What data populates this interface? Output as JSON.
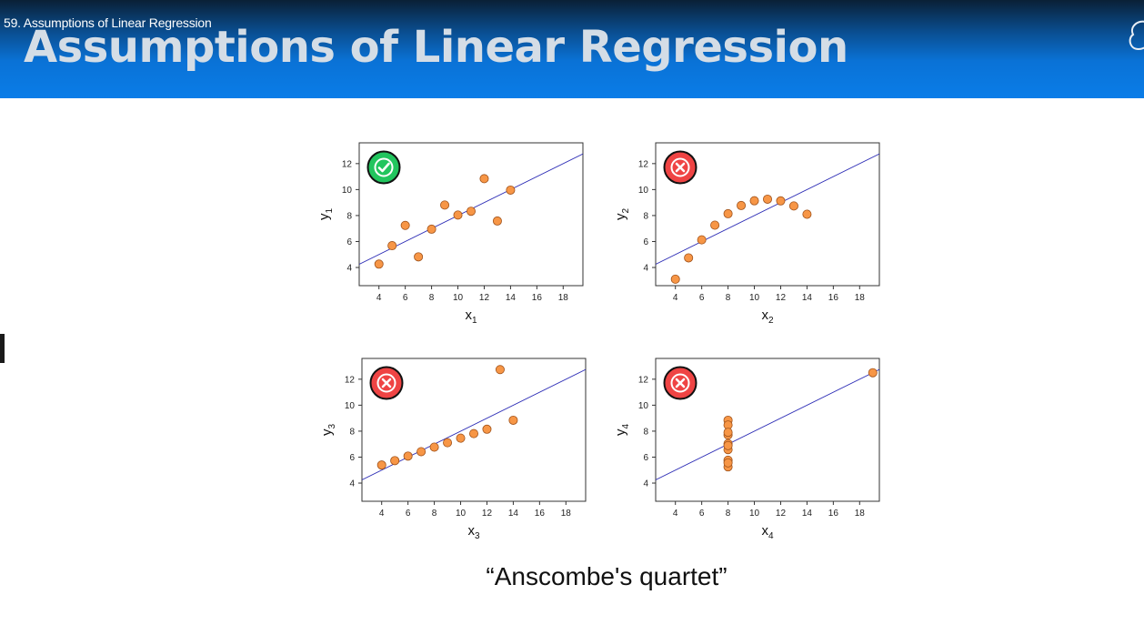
{
  "video": {
    "title": "59. Assumptions of Linear Regression"
  },
  "slide": {
    "title": "Assumptions of Linear Regression",
    "caption": "“Anscombe's quartet”"
  },
  "colors": {
    "point_fill": "#f79646",
    "point_stroke": "#a0521a",
    "fit_line": "#2b2bb5",
    "badge_good": "#22c55e",
    "badge_bad": "#ef4444"
  },
  "chart_data": [
    {
      "type": "scatter",
      "xlabel": "x",
      "xlabel_sub": "1",
      "ylabel": "y",
      "ylabel_sub": "1",
      "xlim": [
        2.5,
        19.5
      ],
      "ylim": [
        2.6,
        13.6
      ],
      "xticks": [
        "4",
        "6",
        "8",
        "10",
        "12",
        "14",
        "16",
        "18"
      ],
      "yticks": [
        "4",
        "6",
        "8",
        "10",
        "12"
      ],
      "fit": {
        "intercept": 3.0,
        "slope": 0.5
      },
      "badge": "check-icon",
      "points": [
        [
          10,
          8.04
        ],
        [
          8,
          6.95
        ],
        [
          13,
          7.58
        ],
        [
          9,
          8.81
        ],
        [
          11,
          8.33
        ],
        [
          14,
          9.96
        ],
        [
          6,
          7.24
        ],
        [
          4,
          4.26
        ],
        [
          12,
          10.84
        ],
        [
          7,
          4.82
        ],
        [
          5,
          5.68
        ]
      ]
    },
    {
      "type": "scatter",
      "xlabel": "x",
      "xlabel_sub": "2",
      "ylabel": "y",
      "ylabel_sub": "2",
      "xlim": [
        2.5,
        19.5
      ],
      "ylim": [
        2.6,
        13.6
      ],
      "xticks": [
        "4",
        "6",
        "8",
        "10",
        "12",
        "14",
        "16",
        "18"
      ],
      "yticks": [
        "4",
        "6",
        "8",
        "10",
        "12"
      ],
      "fit": {
        "intercept": 3.0,
        "slope": 0.5
      },
      "badge": "cross-icon",
      "points": [
        [
          10,
          9.14
        ],
        [
          8,
          8.14
        ],
        [
          13,
          8.74
        ],
        [
          9,
          8.77
        ],
        [
          11,
          9.26
        ],
        [
          14,
          8.1
        ],
        [
          6,
          6.13
        ],
        [
          4,
          3.1
        ],
        [
          12,
          9.13
        ],
        [
          7,
          7.26
        ],
        [
          5,
          4.74
        ]
      ]
    },
    {
      "type": "scatter",
      "xlabel": "x",
      "xlabel_sub": "3",
      "ylabel": "y",
      "ylabel_sub": "3",
      "xlim": [
        2.5,
        19.5
      ],
      "ylim": [
        2.6,
        13.6
      ],
      "xticks": [
        "4",
        "6",
        "8",
        "10",
        "12",
        "14",
        "16",
        "18"
      ],
      "yticks": [
        "4",
        "6",
        "8",
        "10",
        "12"
      ],
      "fit": {
        "intercept": 3.0,
        "slope": 0.5
      },
      "badge": "cross-icon",
      "points": [
        [
          10,
          7.46
        ],
        [
          8,
          6.77
        ],
        [
          13,
          12.74
        ],
        [
          9,
          7.11
        ],
        [
          11,
          7.81
        ],
        [
          14,
          8.84
        ],
        [
          6,
          6.08
        ],
        [
          4,
          5.39
        ],
        [
          12,
          8.15
        ],
        [
          7,
          6.42
        ],
        [
          5,
          5.73
        ]
      ]
    },
    {
      "type": "scatter",
      "xlabel": "x",
      "xlabel_sub": "4",
      "ylabel": "y",
      "ylabel_sub": "4",
      "xlim": [
        2.5,
        19.5
      ],
      "ylim": [
        2.6,
        13.6
      ],
      "xticks": [
        "4",
        "6",
        "8",
        "10",
        "12",
        "14",
        "16",
        "18"
      ],
      "yticks": [
        "4",
        "6",
        "8",
        "10",
        "12"
      ],
      "fit": {
        "intercept": 3.0,
        "slope": 0.5
      },
      "badge": "cross-icon",
      "points": [
        [
          8,
          6.58
        ],
        [
          8,
          5.76
        ],
        [
          8,
          7.71
        ],
        [
          8,
          8.84
        ],
        [
          8,
          8.47
        ],
        [
          8,
          7.04
        ],
        [
          8,
          5.25
        ],
        [
          19,
          12.5
        ],
        [
          8,
          5.56
        ],
        [
          8,
          7.91
        ],
        [
          8,
          6.89
        ]
      ]
    }
  ]
}
